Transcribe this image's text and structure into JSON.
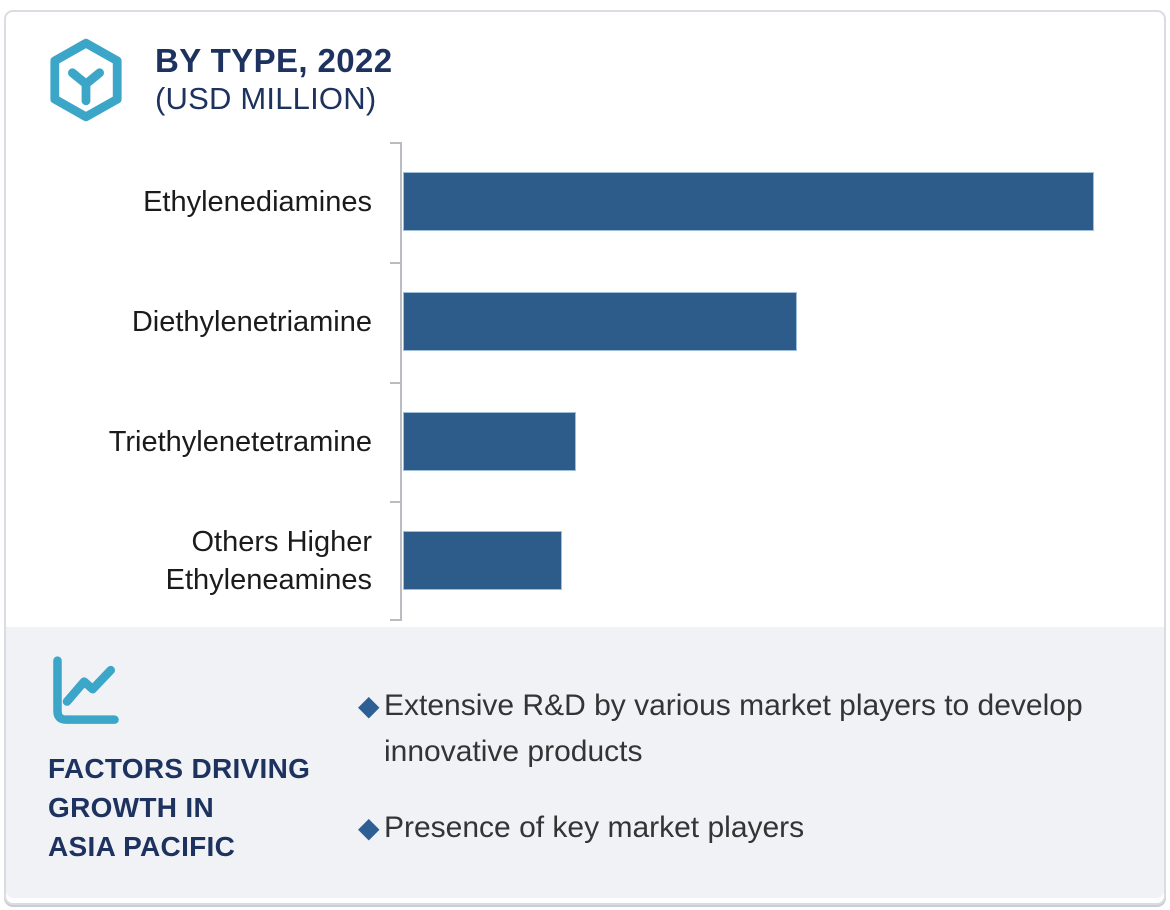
{
  "header": {
    "title": "BY TYPE, 2022",
    "subtitle": "(USD MILLION)"
  },
  "chart_data": {
    "type": "bar",
    "orientation": "horizontal",
    "title": "BY TYPE, 2022 (USD MILLION)",
    "categories": [
      "Ethylenediamines",
      "Diethylenetriamine",
      "Triethylenetetramine",
      "Others Higher\nEthyleneamines"
    ],
    "values": [
      100,
      57,
      25,
      23
    ],
    "value_note": "axis has no numeric tick labels; values estimated as percent of longest bar",
    "xlabel": "",
    "ylabel": "",
    "grid": false,
    "legend": false,
    "bar_color": "#2E5C8A",
    "axis_color": "#B9BCC0"
  },
  "factors": {
    "heading_lines": [
      "FACTORS DRIVING",
      "GROWTH IN",
      "ASIA PACIFIC"
    ],
    "bullets": [
      {
        "text": "Extensive R&D by various market players to develop innovative products"
      },
      {
        "text": "Presence of key market players"
      }
    ]
  },
  "icons": {
    "logo": "hexagon-y-logo-icon",
    "factors": "line-chart-icon",
    "bullet": "diamond-bullet-icon"
  },
  "colors": {
    "accent_teal": "#3BA6C7",
    "navy": "#1E3260",
    "bar_blue": "#2E5C8A",
    "bullet_blue": "#2E5F94",
    "panel_background": "#F0F2F6",
    "axis_gray": "#B9BCC0",
    "card_border": "#D9DCE2",
    "label_black": "#1B1B1B",
    "bullet_text": "#343434"
  }
}
